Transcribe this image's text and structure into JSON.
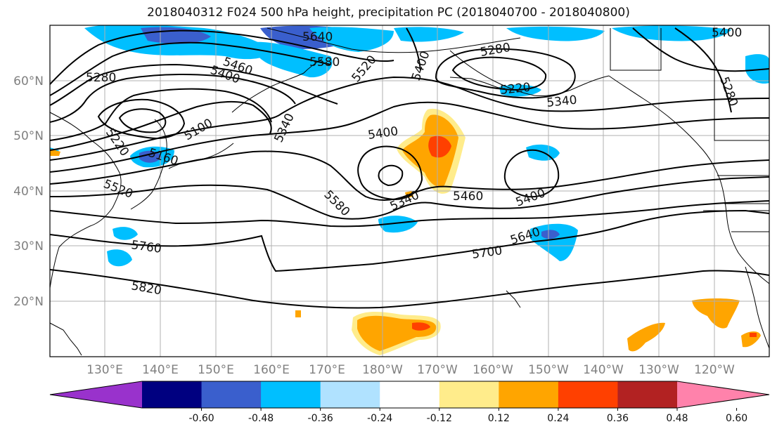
{
  "title": "2018040312 F024 500 hPa height, precipitation PC (2018040700 - 2018040800)",
  "map": {
    "region": "North Pacific",
    "lon_labels": [
      "130°E",
      "140°E",
      "150°E",
      "160°E",
      "170°E",
      "180°W",
      "170°W",
      "160°W",
      "150°W",
      "140°W",
      "130°W",
      "120°W"
    ],
    "lat_labels": [
      "60°N",
      "50°N",
      "40°N",
      "30°N",
      "20°N"
    ],
    "contour_labels": [
      "5640",
      "5580",
      "5520",
      "5400",
      "5460",
      "5400",
      "5280",
      "5280",
      "5340",
      "5220",
      "5100",
      "5160",
      "5220",
      "5340",
      "5400",
      "5520",
      "5460",
      "5580",
      "5400",
      "5340",
      "5760",
      "5640",
      "5700",
      "5820",
      "5400",
      "5280"
    ],
    "contour_field": "500 hPa geopotential height",
    "shaded_field": "precipitation PC"
  },
  "colorbar": {
    "ticks": [
      "-0.60",
      "-0.48",
      "-0.36",
      "-0.24",
      "-0.12",
      "0.12",
      "0.24",
      "0.36",
      "0.48",
      "0.60"
    ],
    "colors": [
      "#9932cc",
      "#000080",
      "#3a5fcd",
      "#00bfff",
      "#b0e2ff",
      "#ffffff",
      "#ffec8b",
      "#ffa500",
      "#ff4000",
      "#b22222",
      "#ff82ab"
    ],
    "extend": "both"
  }
}
